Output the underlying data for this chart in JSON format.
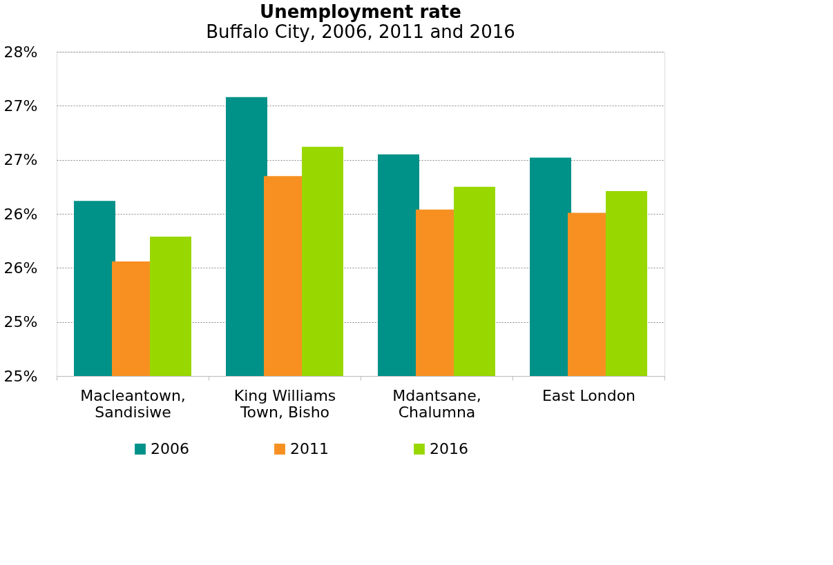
{
  "chart_data": {
    "type": "bar",
    "title": "Unemployment rate",
    "subtitle": "Buffalo City, 2006, 2011 and 2016",
    "categories": [
      "Macleantown,\nSandisiwe",
      "King Williams\nTown, Bisho",
      "Mdantsane,\nChalumna",
      "East London"
    ],
    "series": [
      {
        "name": "2006",
        "color": "#009188",
        "values": [
          26.62,
          27.58,
          27.05,
          27.02
        ]
      },
      {
        "name": "2011",
        "color": "#f79021",
        "values": [
          26.06,
          26.85,
          26.54,
          26.51
        ]
      },
      {
        "name": "2016",
        "color": "#99d700",
        "values": [
          26.29,
          27.12,
          26.75,
          26.71
        ]
      }
    ],
    "ylim": [
      25,
      28
    ],
    "yticks": [
      {
        "value": 25,
        "label": "25%"
      },
      {
        "value": 25.5,
        "label": "25%"
      },
      {
        "value": 26,
        "label": "26%"
      },
      {
        "value": 26.5,
        "label": "26%"
      },
      {
        "value": 27,
        "label": "27%"
      },
      {
        "value": 27.5,
        "label": "27%"
      },
      {
        "value": 28,
        "label": "28%"
      }
    ],
    "grid": "y",
    "legend": "bottom"
  }
}
